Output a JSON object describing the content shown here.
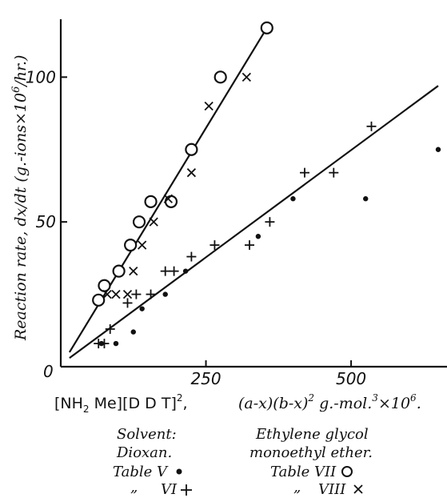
{
  "chart_data": {
    "type": "scatter",
    "title": "",
    "xlabel_parts": {
      "bracket_a": "[NH",
      "bracket_a_sub": "2",
      "bracket_a_end": " Me][D D T]",
      "bracket_sup": "2",
      "sep": ",",
      "expr_a": "(a-x)(b-x)",
      "expr_sup": "2",
      "units": " g.-mol.",
      "units_sup": "3",
      "units_end": "×10",
      "units_end_sup": "6",
      "units_dot": "."
    },
    "ylabel": "Reaction rate, dx/dt (g.-ions × 10⁶/hr.)",
    "ylabel_main": "Reaction rate, dx/dt (g.-ions",
    "ylabel_x": "×10",
    "ylabel_sup": "6",
    "ylabel_end": "/hr.)",
    "xlim": [
      0,
      650
    ],
    "ylim": [
      0,
      120
    ],
    "xticks": [
      {
        "value": 250,
        "label": "250"
      },
      {
        "value": 500,
        "label": "500"
      }
    ],
    "yticks": [
      {
        "value": 50,
        "label": "50"
      },
      {
        "value": 100,
        "label": "100"
      }
    ],
    "origin_label": "0",
    "grid": false,
    "series": [
      {
        "name": "Table V",
        "marker": "dot",
        "points": [
          [
            70,
            8
          ],
          [
            95,
            8
          ],
          [
            125,
            12
          ],
          [
            140,
            20
          ],
          [
            180,
            25
          ],
          [
            215,
            33
          ],
          [
            340,
            45
          ],
          [
            400,
            58
          ],
          [
            525,
            58
          ],
          [
            650,
            75
          ]
        ]
      },
      {
        "name": "VI",
        "marker": "plus",
        "points": [
          [
            65,
            8
          ],
          [
            75,
            8
          ],
          [
            85,
            13
          ],
          [
            115,
            22
          ],
          [
            130,
            25
          ],
          [
            155,
            25
          ],
          [
            180,
            33
          ],
          [
            195,
            33
          ],
          [
            225,
            38
          ],
          [
            265,
            42
          ],
          [
            325,
            42
          ],
          [
            360,
            50
          ],
          [
            420,
            67
          ],
          [
            470,
            67
          ],
          [
            535,
            83
          ]
        ]
      },
      {
        "name": "Table VII",
        "marker": "circle",
        "points": [
          [
            65,
            23
          ],
          [
            75,
            28
          ],
          [
            100,
            33
          ],
          [
            120,
            42
          ],
          [
            135,
            50
          ],
          [
            155,
            57
          ],
          [
            190,
            57
          ],
          [
            225,
            75
          ],
          [
            275,
            100
          ],
          [
            355,
            117
          ]
        ]
      },
      {
        "name": "VIII",
        "marker": "x",
        "points": [
          [
            80,
            25
          ],
          [
            95,
            25
          ],
          [
            115,
            25
          ],
          [
            125,
            33
          ],
          [
            140,
            42
          ],
          [
            160,
            50
          ],
          [
            185,
            58
          ],
          [
            225,
            67
          ],
          [
            255,
            90
          ],
          [
            320,
            100
          ]
        ]
      }
    ],
    "lines": [
      {
        "name": "dioxan-fit",
        "x": [
          15,
          650
        ],
        "y": [
          3,
          97
        ]
      },
      {
        "name": "ether-fit",
        "x": [
          15,
          355
        ],
        "y": [
          5,
          117
        ]
      }
    ],
    "legend": {
      "placement": "bottom",
      "col1_header_a": "Solvent:",
      "col1_header_b": "Dioxan.",
      "col2_header_a": "Ethylene glycol",
      "col2_header_b": "monoethyl ether.",
      "entry_v": "Table V",
      "entry_vi_ditto": "„",
      "entry_vi": "VI",
      "entry_vii": "Table VII",
      "entry_viii_ditto": "„",
      "entry_viii": "VIII"
    }
  }
}
